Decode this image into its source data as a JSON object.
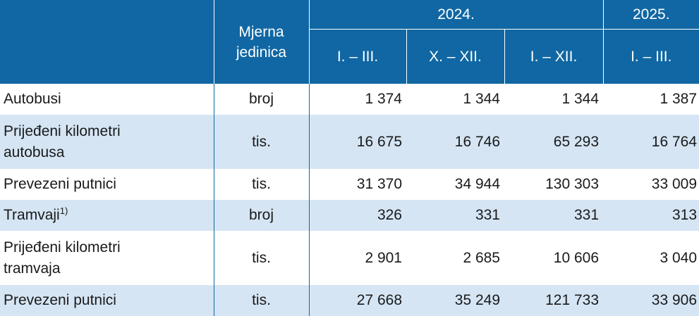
{
  "header": {
    "unit_label_line1": "Mjerna",
    "unit_label_line2": "jedinica",
    "year_2024": "2024.",
    "year_2025": "2025.",
    "periods": [
      "I. – III.",
      "X. – XII.",
      "I. – XII.",
      "I. – III."
    ]
  },
  "rows": [
    {
      "label_line1": "Autobusi",
      "label_line2": "",
      "footnote": "",
      "unit": "broj",
      "values": [
        "1 374",
        "1 344",
        "1 344",
        "1 387"
      ],
      "shaded": false
    },
    {
      "label_line1": "Prijeđeni kilometri",
      "label_line2": "autobusa",
      "footnote": "",
      "unit": "tis.",
      "values": [
        "16 675",
        "16 746",
        "65 293",
        "16 764"
      ],
      "shaded": true
    },
    {
      "label_line1": "Prevezeni putnici",
      "label_line2": "",
      "footnote": "",
      "unit": "tis.",
      "values": [
        "31 370",
        "34 944",
        "130 303",
        "33 009"
      ],
      "shaded": false
    },
    {
      "label_line1": "Tramvaji",
      "label_line2": "",
      "footnote": "1)",
      "unit": "broj",
      "values": [
        "326",
        "331",
        "331",
        "313"
      ],
      "shaded": true
    },
    {
      "label_line1": "Prijeđeni kilometri",
      "label_line2": "tramvaja",
      "footnote": "",
      "unit": "tis.",
      "values": [
        "2 901",
        "2 685",
        "10 606",
        "3 040"
      ],
      "shaded": false
    },
    {
      "label_line1": "Prevezeni putnici",
      "label_line2": "",
      "footnote": "",
      "unit": "tis.",
      "values": [
        "27 668",
        "35 249",
        "121 733",
        "33 906"
      ],
      "shaded": true
    }
  ],
  "colors": {
    "header_bg": "#1067a3",
    "row_alt_bg": "#d5e5f4"
  }
}
